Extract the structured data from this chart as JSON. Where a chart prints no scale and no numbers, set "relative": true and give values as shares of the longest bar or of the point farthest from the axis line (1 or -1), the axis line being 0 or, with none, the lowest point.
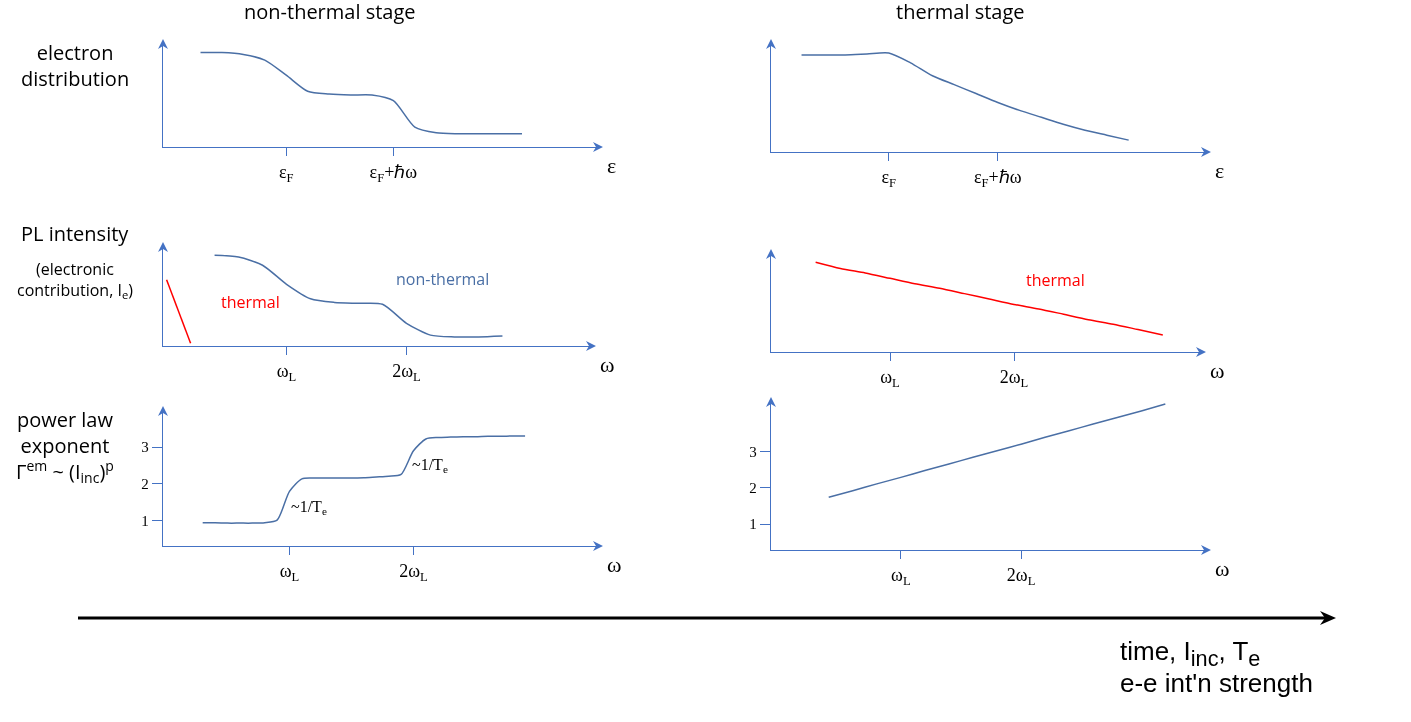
{
  "chart_data": [
    {
      "type": "line",
      "relative": true,
      "title": "non-thermal stage",
      "ylabel": "electron\ndistribution",
      "xlabel": "ε",
      "categories": [
        null,
        null,
        null,
        null,
        null,
        "ε$_{F}$",
        null,
        null,
        null,
        null,
        "ε$_{F}$+ℏω",
        null,
        null,
        null,
        null,
        null,
        null
      ],
      "series": [
        {
          "color": "#4a6fa5",
          "values": [
            null,
            1.0,
            1.0,
            0.98,
            0.92,
            0.76,
            0.59,
            0.56,
            0.55,
            0.55,
            0.49,
            0.21,
            0.15,
            0.14,
            0.14,
            0.14,
            0.14
          ]
        }
      ]
    },
    {
      "type": "line",
      "relative": true,
      "title": "thermal stage",
      "xlabel": "ε",
      "categories": [
        null,
        null,
        null,
        null,
        null,
        "ε$_{F}$",
        null,
        null,
        null,
        null,
        "ε$_{F}$+ℏω",
        null,
        null,
        null,
        null,
        null,
        null
      ],
      "series": [
        {
          "color": "#4a6fa5",
          "values": [
            null,
            0.98,
            0.98,
            0.98,
            0.99,
            1.0,
            0.9,
            0.77,
            0.68,
            0.59,
            0.5,
            0.42,
            0.35,
            0.28,
            0.22,
            0.17,
            0.12
          ]
        }
      ]
    },
    {
      "type": "line",
      "relative": true,
      "ylabel": "PL intensity",
      "xlabel": "ω",
      "annotations": [
        "(electronic\ncontribution, I$_{e}$)"
      ],
      "categories": [
        null,
        null,
        null,
        null,
        null,
        "ω$_{L}$",
        null,
        null,
        null,
        null,
        "2ω$_{L}$",
        null,
        null,
        null,
        null
      ],
      "series": [
        {
          "name": "thermal",
          "color": "#ff0000",
          "values": [
            0.73,
            0.03,
            null,
            null,
            null,
            null,
            null,
            null,
            null,
            null,
            null,
            null,
            null,
            null,
            null
          ]
        },
        {
          "name": "non-thermal",
          "color": "#4a6fa5",
          "values": [
            null,
            null,
            1.0,
            0.98,
            0.89,
            0.68,
            0.52,
            0.48,
            0.47,
            0.46,
            0.25,
            0.12,
            0.1,
            0.1,
            0.11
          ]
        }
      ]
    },
    {
      "type": "line",
      "relative": true,
      "xlabel": "ω",
      "categories": [
        null,
        null,
        null,
        null,
        null,
        "ω$_{L}$",
        null,
        null,
        null,
        null,
        "2ω$_{L}$",
        null,
        null,
        null,
        null,
        null,
        null
      ],
      "series": [
        {
          "name": "thermal",
          "color": "#ff0000",
          "values": [
            null,
            null,
            1.0,
            0.93,
            0.88,
            0.82,
            0.76,
            0.71,
            0.65,
            0.59,
            0.53,
            0.48,
            0.42,
            0.36,
            0.31,
            0.25,
            0.19
          ]
        }
      ]
    },
    {
      "type": "line",
      "ylabel": "power law\nexponent\nΓ$^{em}$ ~ (I$_{inc}$)$^{p}$",
      "xlabel": "ω",
      "ylim": [
        0.32,
        3.95
      ],
      "yticks": [
        1,
        2,
        3
      ],
      "annotations": [
        "~1/T$_{e}$",
        "~1/T$_{e}$"
      ],
      "categories": [
        null,
        null,
        null,
        null,
        null,
        null,
        null,
        null,
        null,
        null,
        "ω$_{L}$",
        null,
        null,
        null,
        null,
        null,
        null,
        null,
        null,
        null,
        "2ω$_{L}$",
        null,
        null,
        null,
        null,
        null,
        null,
        null,
        null,
        null
      ],
      "series": [
        {
          "color": "#4a6fa5",
          "values": [
            null,
            null,
            null,
            0.95,
            0.95,
            0.94,
            0.94,
            0.94,
            0.95,
            1.02,
            1.8,
            2.14,
            2.16,
            2.16,
            2.16,
            2.16,
            2.17,
            2.19,
            2.21,
            2.26,
            2.9,
            3.22,
            3.26,
            3.27,
            3.28,
            3.28,
            3.29,
            3.29,
            3.3,
            3.3
          ]
        }
      ]
    },
    {
      "type": "line",
      "xlabel": "ω",
      "ylim": [
        0.28,
        4.35
      ],
      "yticks": [
        1,
        2,
        3
      ],
      "categories": [
        null,
        null,
        null,
        null,
        null,
        "ω$_{L}$",
        null,
        null,
        null,
        null,
        "2ω$_{L}$",
        null,
        null,
        null,
        null,
        null,
        null
      ],
      "series": [
        {
          "color": "#4a6fa5",
          "values": [
            null,
            null,
            1.74,
            1.92,
            2.11,
            2.29,
            2.48,
            2.66,
            2.85,
            3.03,
            3.21,
            3.4,
            3.58,
            3.77,
            3.95,
            4.13,
            4.32
          ]
        }
      ]
    },
    {
      "type": "other",
      "annotations": [
        "time, I$_{inc}$, T$_{e}$",
        "e-e int'n strength"
      ]
    }
  ]
}
